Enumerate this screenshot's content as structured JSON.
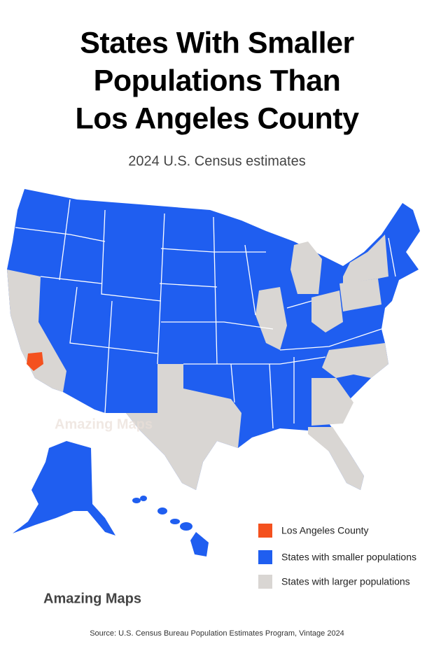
{
  "title": {
    "lines": [
      "States With Smaller",
      "Populations Than",
      "Los Angeles County"
    ]
  },
  "subtitle": "2024 U.S. Census estimates",
  "legend": [
    {
      "label": "Los Angeles County",
      "color": "#f4511e"
    },
    {
      "label": "States with smaller populations",
      "color": "#1f5ef0"
    },
    {
      "label": "States with larger populations",
      "color": "#d9d6d3"
    }
  ],
  "watermark": "Amazing Maps",
  "brand": "Amazing Maps",
  "source": "Source: U.S. Census Bureau Population Estimates Program, Vintage 2024"
}
